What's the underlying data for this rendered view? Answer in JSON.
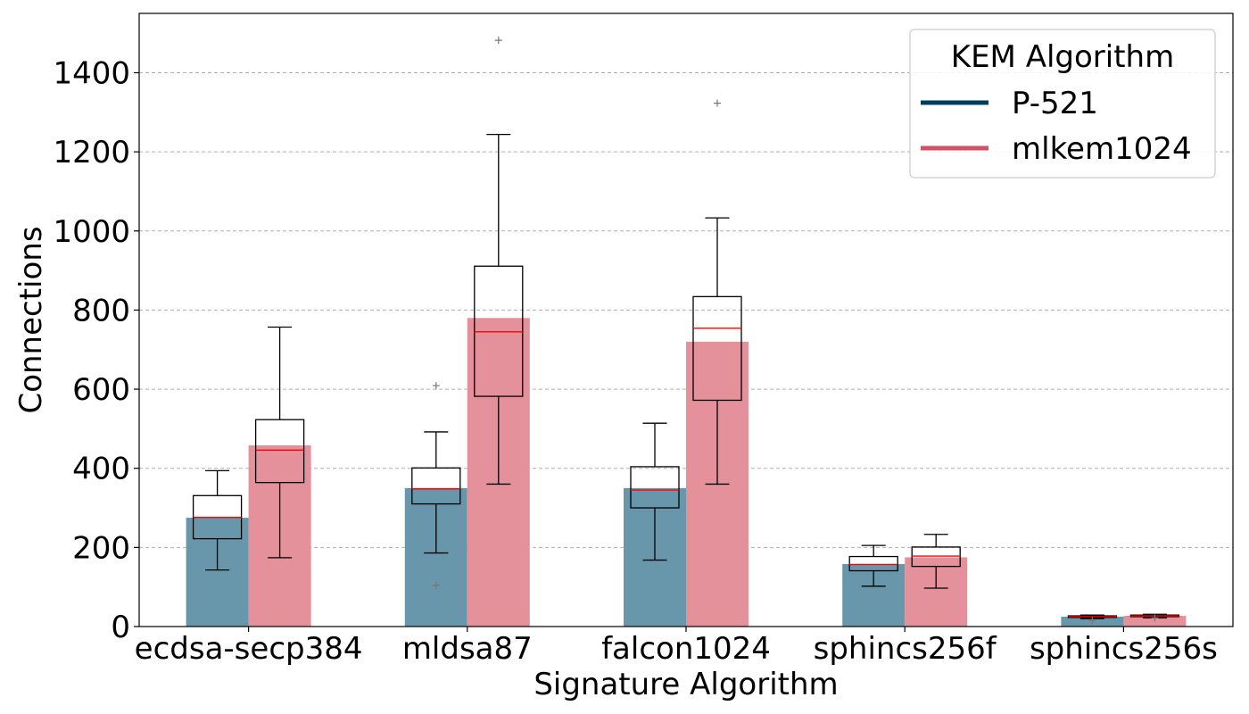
{
  "chart_data": {
    "type": "bar",
    "title": "",
    "xlabel": "Signature Algorithm",
    "ylabel": "Connections",
    "categories": [
      "ecdsa-secp384",
      "mldsa87",
      "falcon1024",
      "sphincs256f",
      "sphincs256s"
    ],
    "ylim": [
      0,
      1550
    ],
    "yticks": [
      0,
      200,
      400,
      600,
      800,
      1000,
      1200,
      1400
    ],
    "grid": "y-dashed",
    "legend": {
      "title": "KEM Algorithm",
      "placement": "top-right"
    },
    "series": [
      {
        "name": "P-521",
        "color": "#003f5c",
        "bar_color": "#6897ab",
        "values": [
          275,
          350,
          350,
          158,
          25
        ],
        "boxes": [
          {
            "whisker_low": 143,
            "q1": 222,
            "median": 276,
            "q3": 331,
            "whisker_high": 394,
            "outliers": []
          },
          {
            "whisker_low": 186,
            "q1": 310,
            "median": 348,
            "q3": 401,
            "whisker_high": 492,
            "outliers": [
              104,
              609
            ]
          },
          {
            "whisker_low": 168,
            "q1": 300,
            "median": 345,
            "q3": 404,
            "whisker_high": 514,
            "outliers": []
          },
          {
            "whisker_low": 102,
            "q1": 141,
            "median": 157,
            "q3": 177,
            "whisker_high": 205,
            "outliers": []
          },
          {
            "whisker_low": 20,
            "q1": 23,
            "median": 25,
            "q3": 27,
            "whisker_high": 29,
            "outliers": [
              15
            ]
          }
        ]
      },
      {
        "name": "mlkem1024",
        "color": "#d45064",
        "bar_color": "#e4919b",
        "values": [
          458,
          780,
          720,
          175,
          27
        ],
        "boxes": [
          {
            "whisker_low": 174,
            "q1": 364,
            "median": 446,
            "q3": 523,
            "whisker_high": 757,
            "outliers": []
          },
          {
            "whisker_low": 360,
            "q1": 582,
            "median": 745,
            "q3": 911,
            "whisker_high": 1244,
            "outliers": [
              1482
            ]
          },
          {
            "whisker_low": 360,
            "q1": 572,
            "median": 754,
            "q3": 834,
            "whisker_high": 1033,
            "outliers": [
              1323
            ]
          },
          {
            "whisker_low": 97,
            "q1": 152,
            "median": 178,
            "q3": 201,
            "whisker_high": 233,
            "outliers": []
          },
          {
            "whisker_low": 22,
            "q1": 25,
            "median": 27,
            "q3": 29,
            "whisker_high": 31,
            "outliers": [
              22
            ]
          }
        ]
      }
    ]
  }
}
